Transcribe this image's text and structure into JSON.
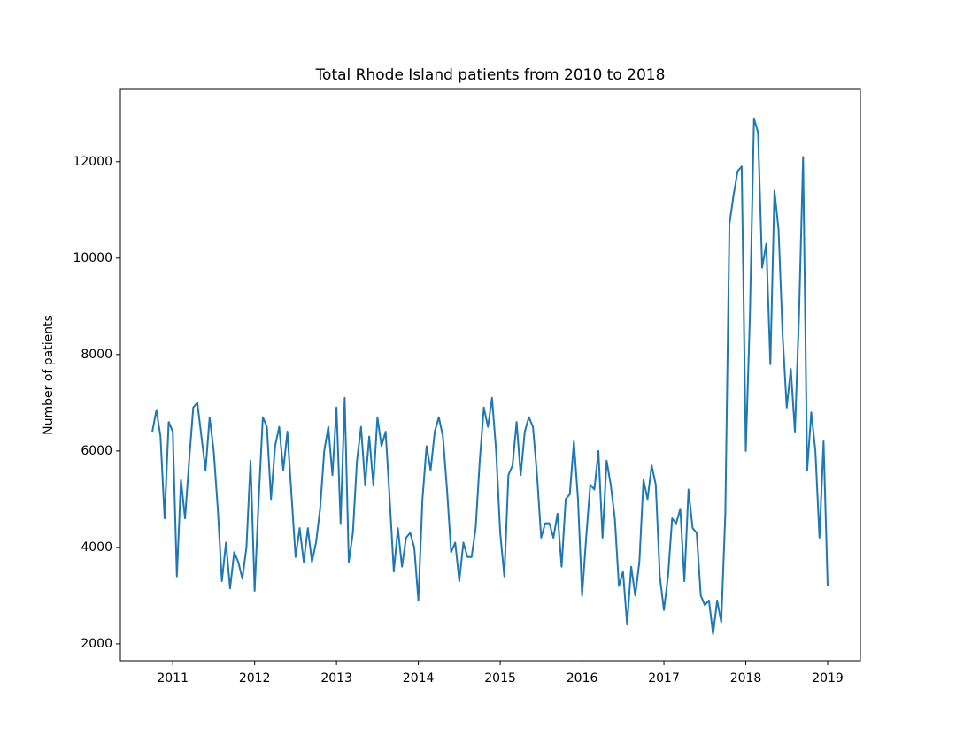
{
  "chart_data": {
    "type": "line",
    "title": "Total Rhode Island patients from 2010 to 2018",
    "ylabel": "Number of patients",
    "color": "#1f77b4",
    "x": [
      2010.75,
      2010.8,
      2010.85,
      2010.9,
      2010.95,
      2011,
      2011.05,
      2011.1,
      2011.15,
      2011.2,
      2011.25,
      2011.3,
      2011.35,
      2011.4,
      2011.45,
      2011.5,
      2011.55,
      2011.6,
      2011.65,
      2011.7,
      2011.75,
      2011.8,
      2011.85,
      2011.9,
      2011.95,
      2012,
      2012.05,
      2012.1,
      2012.15,
      2012.2,
      2012.25,
      2012.3,
      2012.35,
      2012.4,
      2012.45,
      2012.5,
      2012.55,
      2012.6,
      2012.65,
      2012.7,
      2012.75,
      2012.8,
      2012.85,
      2012.9,
      2012.95,
      2013,
      2013.05,
      2013.1,
      2013.15,
      2013.2,
      2013.25,
      2013.3,
      2013.35,
      2013.4,
      2013.45,
      2013.5,
      2013.55,
      2013.6,
      2013.65,
      2013.7,
      2013.75,
      2013.8,
      2013.85,
      2013.9,
      2013.95,
      2014,
      2014.05,
      2014.1,
      2014.15,
      2014.2,
      2014.25,
      2014.3,
      2014.35,
      2014.4,
      2014.45,
      2014.5,
      2014.55,
      2014.6,
      2014.65,
      2014.7,
      2014.75,
      2014.8,
      2014.85,
      2014.9,
      2014.95,
      2015,
      2015.05,
      2015.1,
      2015.15,
      2015.2,
      2015.25,
      2015.3,
      2015.35,
      2015.4,
      2015.45,
      2015.5,
      2015.55,
      2015.6,
      2015.65,
      2015.7,
      2015.75,
      2015.8,
      2015.85,
      2015.9,
      2015.95,
      2016,
      2016.05,
      2016.1,
      2016.15,
      2016.2,
      2016.25,
      2016.3,
      2016.35,
      2016.4,
      2016.45,
      2016.5,
      2016.55,
      2016.6,
      2016.65,
      2016.7,
      2016.75,
      2016.8,
      2016.85,
      2016.9,
      2016.95,
      2017,
      2017.05,
      2017.1,
      2017.15,
      2017.2,
      2017.25,
      2017.3,
      2017.35,
      2017.4,
      2017.45,
      2017.5,
      2017.55,
      2017.6,
      2017.65,
      2017.7,
      2017.75,
      2017.8,
      2017.85,
      2017.9,
      2017.95,
      2018,
      2018.05,
      2018.1,
      2018.15,
      2018.2,
      2018.25,
      2018.3,
      2018.35,
      2018.4,
      2018.45,
      2018.5,
      2018.55,
      2018.6,
      2018.65,
      2018.7,
      2018.75,
      2018.8,
      2018.85,
      2018.9,
      2018.95,
      2019
    ],
    "values": [
      6400,
      6850,
      6300,
      4600,
      6600,
      6400,
      3400,
      5400,
      4600,
      5800,
      6900,
      7000,
      6300,
      5600,
      6700,
      6000,
      4800,
      3300,
      4100,
      3150,
      3900,
      3700,
      3350,
      4000,
      5800,
      3100,
      5000,
      6700,
      6500,
      5000,
      6100,
      6500,
      5600,
      6400,
      5100,
      3800,
      4400,
      3700,
      4400,
      3700,
      4100,
      4800,
      6000,
      6500,
      5500,
      6900,
      4500,
      7100,
      3700,
      4300,
      5800,
      6500,
      5300,
      6300,
      5300,
      6700,
      6100,
      6400,
      5000,
      3500,
      4400,
      3600,
      4200,
      4300,
      4000,
      2900,
      5000,
      6100,
      5600,
      6400,
      6700,
      6300,
      5200,
      3900,
      4100,
      3300,
      4100,
      3800,
      3800,
      4400,
      5800,
      6900,
      6500,
      7100,
      6000,
      4300,
      3400,
      5500,
      5700,
      6600,
      5500,
      6400,
      6700,
      6500,
      5500,
      4200,
      4500,
      4500,
      4200,
      4700,
      3600,
      5000,
      5100,
      6200,
      5000,
      3000,
      4200,
      5300,
      5200,
      6000,
      4200,
      5800,
      5300,
      4600,
      3200,
      3500,
      2400,
      3600,
      3000,
      3700,
      5400,
      5000,
      5700,
      5300,
      3400,
      2700,
      3400,
      4600,
      4500,
      4800,
      3300,
      5200,
      4400,
      4300,
      3000,
      2800,
      2900,
      2200,
      2900,
      2450,
      4700,
      10700,
      11300,
      11800,
      11900,
      6000,
      8800,
      12900,
      12600,
      9800,
      10300,
      7800,
      11400,
      10600,
      8400,
      6900,
      7700,
      6400,
      8800,
      12100,
      5600,
      6800,
      6000,
      4200,
      6200,
      3200
    ],
    "xlim": [
      2010.36,
      2019.4
    ],
    "xticks": [
      2011,
      2012,
      2013,
      2014,
      2015,
      2016,
      2017,
      2018,
      2019
    ],
    "ylim": [
      1650,
      13500
    ],
    "yticks": [
      2000,
      4000,
      6000,
      8000,
      10000,
      12000
    ]
  }
}
